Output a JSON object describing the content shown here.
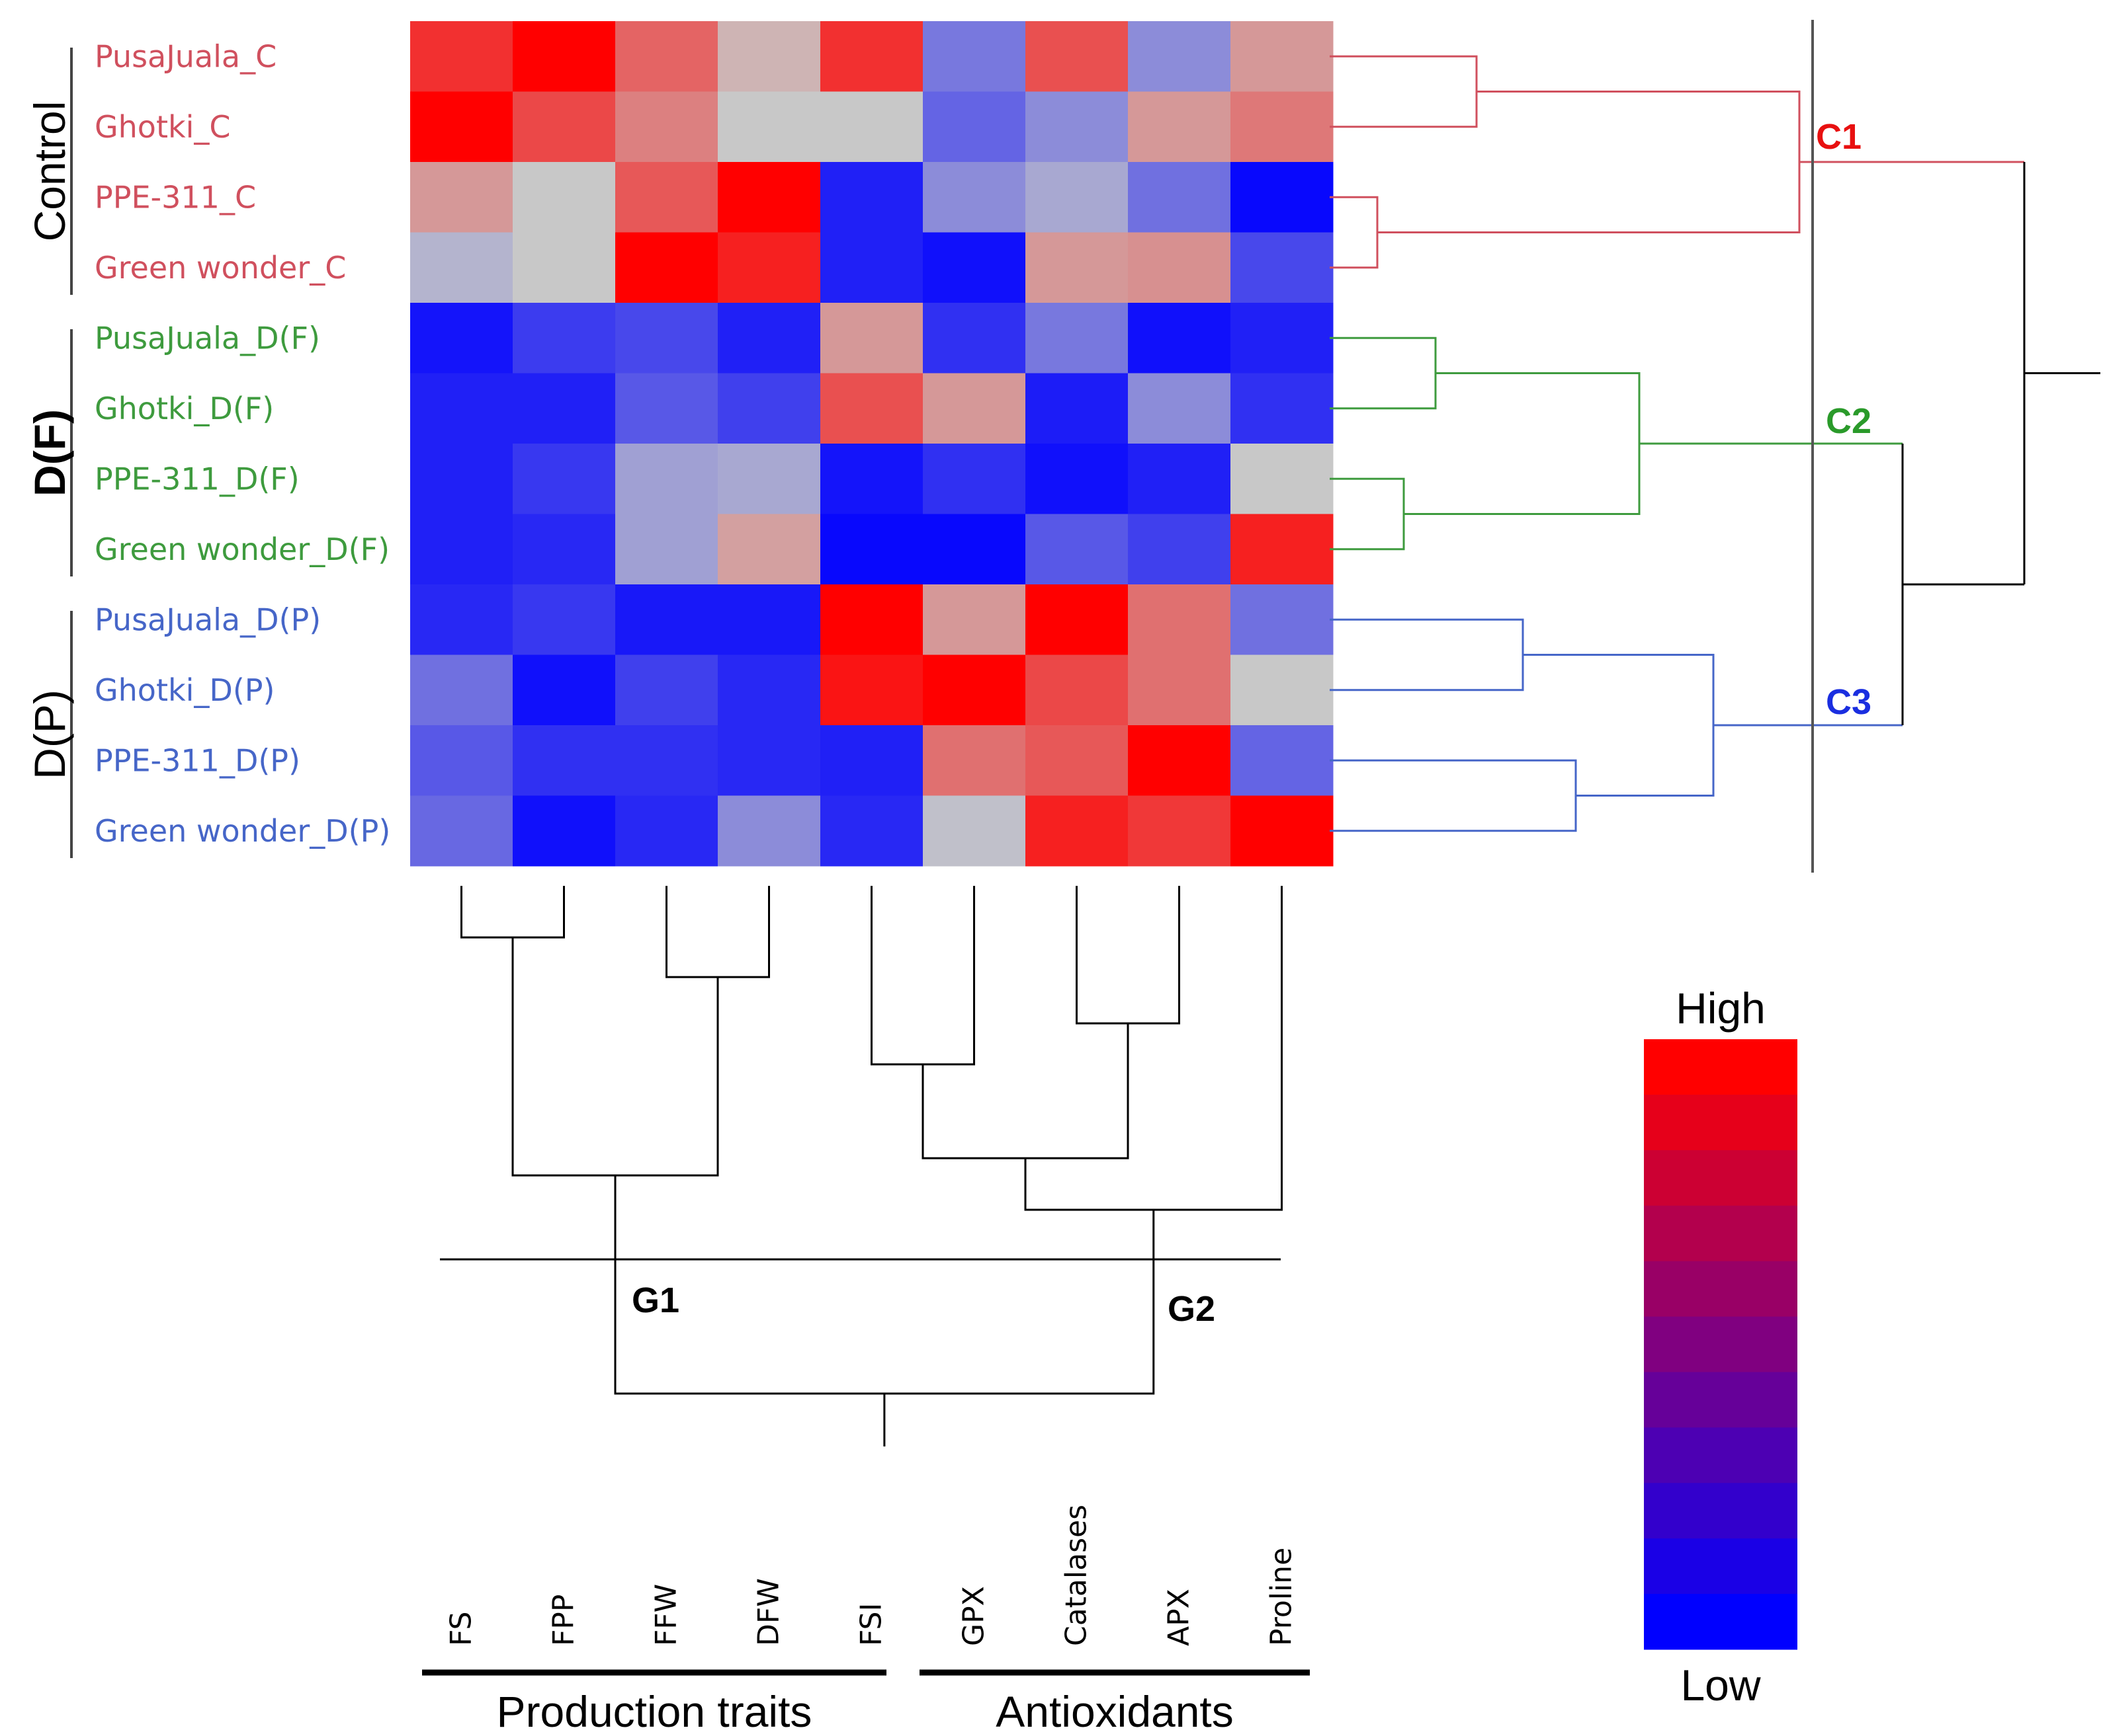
{
  "chart_data": {
    "type": "heatmap",
    "rows": [
      {
        "label": "PusaJuala_C",
        "group": "Control"
      },
      {
        "label": "Ghotki_C",
        "group": "Control"
      },
      {
        "label": "PPE-311_C",
        "group": "Control"
      },
      {
        "label": "Green wonder_C",
        "group": "Control"
      },
      {
        "label": "PusaJuala_D(F)",
        "group": "D(F)"
      },
      {
        "label": "Ghotki_D(F)",
        "group": "D(F)"
      },
      {
        "label": "PPE-311_D(F)",
        "group": "D(F)"
      },
      {
        "label": "Green wonder_D(F)",
        "group": "D(F)"
      },
      {
        "label": "PusaJuala_D(P)",
        "group": "D(P)"
      },
      {
        "label": "Ghotki_D(P)",
        "group": "D(P)"
      },
      {
        "label": "PPE-311_D(P)",
        "group": "D(P)"
      },
      {
        "label": "Green wonder_D(P)",
        "group": "D(P)"
      }
    ],
    "row_groups": [
      {
        "name": "Control",
        "color": "#d0505e",
        "bold": false
      },
      {
        "name": "D(F)",
        "color": "#3e9b3e",
        "bold": true
      },
      {
        "name": "D(P)",
        "color": "#4666c8",
        "bold": false
      }
    ],
    "columns": [
      "FS",
      "FPP",
      "FFW",
      "DFW",
      "FSI",
      "GPX",
      "Catalases",
      "APX",
      "Proline"
    ],
    "column_groups": [
      {
        "name": "Production traits"
      },
      {
        "name": "Antioxidants"
      }
    ],
    "values": [
      [
        0.88,
        1.0,
        0.75,
        0.55,
        0.88,
        0.3,
        0.8,
        0.35,
        0.62
      ],
      [
        1.0,
        0.82,
        0.68,
        0.5,
        0.5,
        0.25,
        0.35,
        0.62,
        0.7
      ],
      [
        0.62,
        0.5,
        0.78,
        1.0,
        0.08,
        0.35,
        0.42,
        0.28,
        0.02
      ],
      [
        0.45,
        0.5,
        1.0,
        0.92,
        0.08,
        0.04,
        0.62,
        0.64,
        0.18
      ],
      [
        0.05,
        0.15,
        0.18,
        0.08,
        0.62,
        0.12,
        0.3,
        0.04,
        0.08
      ],
      [
        0.08,
        0.08,
        0.22,
        0.16,
        0.8,
        0.62,
        0.07,
        0.35,
        0.12
      ],
      [
        0.08,
        0.14,
        0.4,
        0.42,
        0.05,
        0.12,
        0.04,
        0.08,
        0.5
      ],
      [
        0.08,
        0.1,
        0.4,
        0.6,
        0.02,
        0.02,
        0.22,
        0.16,
        0.92
      ],
      [
        0.1,
        0.14,
        0.06,
        0.06,
        1.0,
        0.62,
        1.0,
        0.72,
        0.28
      ],
      [
        0.28,
        0.04,
        0.16,
        0.1,
        0.95,
        1.0,
        0.82,
        0.72,
        0.5
      ],
      [
        0.22,
        0.12,
        0.12,
        0.1,
        0.08,
        0.72,
        0.78,
        1.0,
        0.25
      ],
      [
        0.26,
        0.04,
        0.1,
        0.35,
        0.1,
        0.48,
        0.92,
        0.86,
        1.0
      ]
    ],
    "row_clusters": [
      {
        "name": "C1",
        "color": "#e81010"
      },
      {
        "name": "C2",
        "color": "#2a9a2a"
      },
      {
        "name": "C3",
        "color": "#1a2ee0"
      }
    ],
    "column_clusters": [
      {
        "name": "G1"
      },
      {
        "name": "G2"
      }
    ],
    "scale": {
      "high": "High",
      "low": "Low",
      "high_color": "#ff0000",
      "low_color": "#0000ff",
      "mid_color": "#c8c8c8"
    },
    "dendrogram_colors": {
      "C1": "#d0505e",
      "C2": "#3e9b3e",
      "C3": "#4666c8",
      "root": "#000000"
    }
  }
}
